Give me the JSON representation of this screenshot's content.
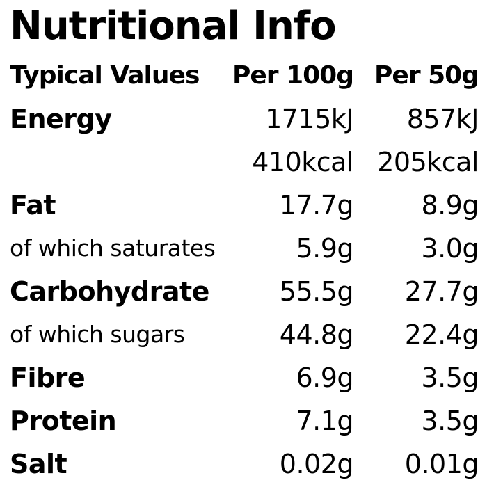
{
  "title": "Nutritional Info",
  "header": {
    "label": "Typical Values",
    "col1": "Per 100g",
    "col2": "Per 50g"
  },
  "rows": [
    {
      "label": "Energy",
      "per100": "1715kJ",
      "per50": "857kJ"
    },
    {
      "label": "",
      "per100": "410kcal",
      "per50": "205kcal"
    },
    {
      "label": "Fat",
      "per100": "17.7g",
      "per50": "8.9g"
    },
    {
      "label": "of which saturates",
      "per100": "5.9g",
      "per50": "3.0g"
    },
    {
      "label": "Carbohydrate",
      "per100": "55.5g",
      "per50": "27.7g"
    },
    {
      "label": "of which sugars",
      "per100": "44.8g",
      "per50": "22.4g"
    },
    {
      "label": "Fibre",
      "per100": "6.9g",
      "per50": "3.5g"
    },
    {
      "label": "Protein",
      "per100": "7.1g",
      "per50": "3.5g"
    },
    {
      "label": "Salt",
      "per100": "0.02g",
      "per50": "0.01g"
    }
  ]
}
